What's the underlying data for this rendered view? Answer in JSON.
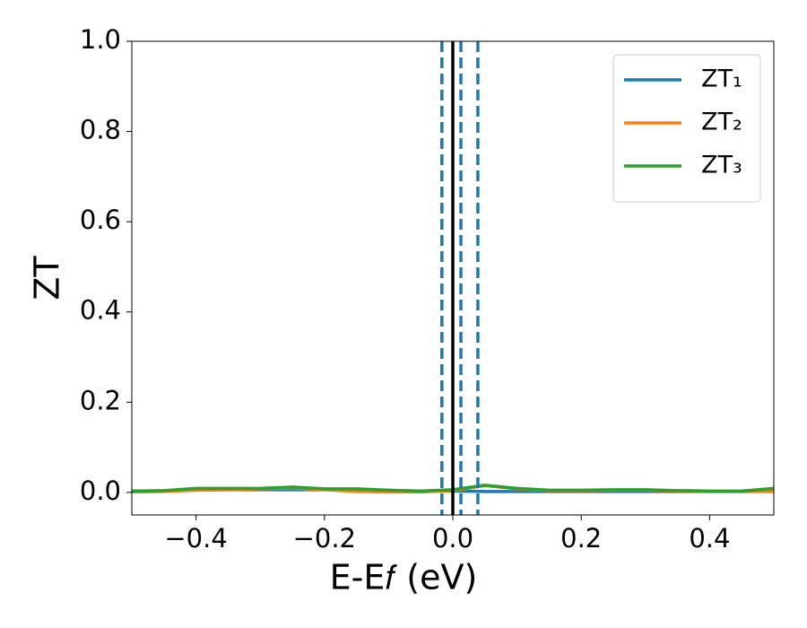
{
  "chart_data": {
    "type": "line",
    "xlabel": "E-E𝑓 (eV)",
    "ylabel": "ZT",
    "x": [
      -0.5,
      -0.45,
      -0.4,
      -0.35,
      -0.3,
      -0.25,
      -0.2,
      -0.15,
      -0.1,
      -0.05,
      0,
      0.05,
      0.1,
      0.15,
      0.2,
      0.25,
      0.3,
      0.35,
      0.4,
      0.45,
      0.5
    ],
    "series": [
      {
        "name": "ZT₁",
        "color": "#1f77b4",
        "values": [
          0.003,
          0.003,
          0.005,
          0.006,
          0.006,
          0.006,
          0.006,
          0.005,
          0.004,
          0.003,
          0.003,
          0.002,
          0.002,
          0.002,
          0.002,
          0.002,
          0.002,
          0.002,
          0.002,
          0.002,
          0.003
        ]
      },
      {
        "name": "ZT₂",
        "color": "#ff7f0e",
        "values": [
          0.001,
          0.002,
          0.005,
          0.006,
          0.008,
          0.01,
          0.006,
          0.002,
          0.001,
          0.001,
          0.004,
          0.015,
          0.008,
          0.004,
          0.004,
          0.005,
          0.005,
          0.003,
          0.002,
          0.002,
          0.002
        ]
      },
      {
        "name": "ZT₃",
        "color": "#2ca02c",
        "values": [
          0.003,
          0.004,
          0.009,
          0.009,
          0.009,
          0.012,
          0.008,
          0.008,
          0.005,
          0.003,
          0.006,
          0.016,
          0.009,
          0.005,
          0.005,
          0.006,
          0.006,
          0.004,
          0.003,
          0.003,
          0.009
        ]
      }
    ],
    "vlines": [
      {
        "x": 0,
        "color": "#000000",
        "style": "solid"
      },
      {
        "x": -0.017,
        "color": "#1f77b4",
        "style": "dashed"
      },
      {
        "x": 0.0126,
        "color": "#1f77b4",
        "style": "dashed"
      },
      {
        "x": 0.039,
        "color": "#1f77b4",
        "style": "dashed"
      }
    ],
    "xlim": [
      -0.5,
      0.5
    ],
    "xticks": [
      {
        "value": -0.4,
        "label": "−0.4"
      },
      {
        "value": -0.2,
        "label": "−0.2"
      },
      {
        "value": 0,
        "label": "0.0"
      },
      0.2,
      0.4
    ],
    "ylim": [
      -0.05,
      1.0
    ],
    "yticks": [
      {
        "value": 0,
        "label": "0.0"
      },
      0.2,
      0.4,
      0.6,
      0.8,
      {
        "value": 1,
        "label": "1.0"
      }
    ],
    "grid": false,
    "legend": "upper right"
  }
}
